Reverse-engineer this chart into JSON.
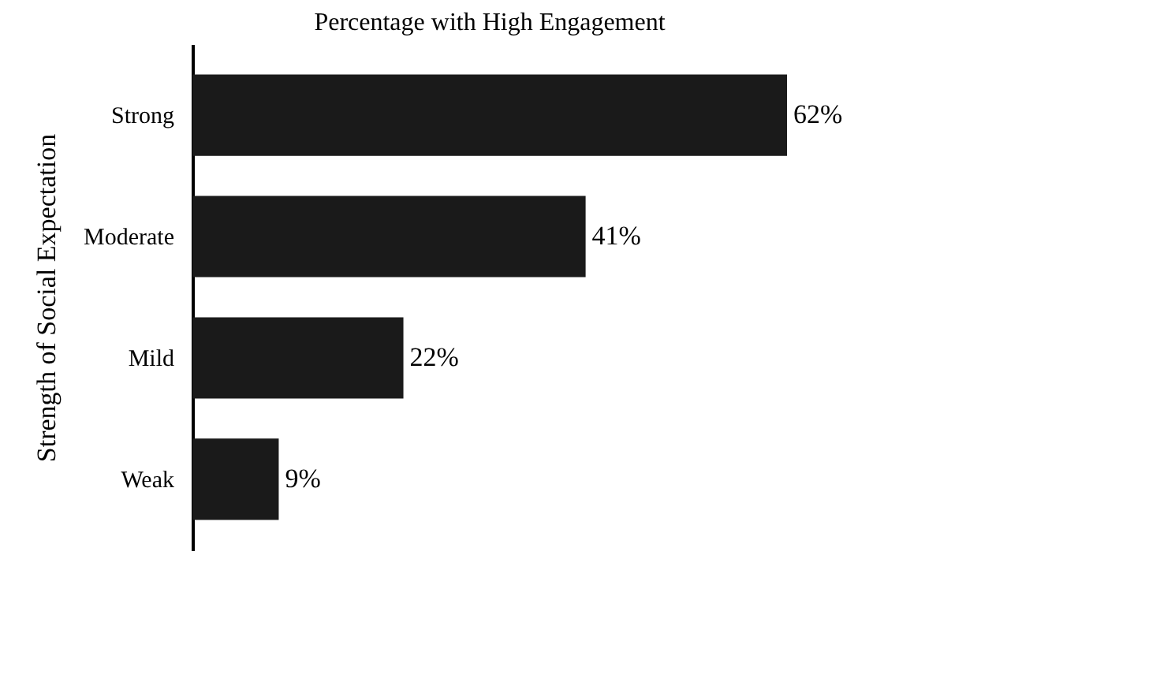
{
  "chart_data": {
    "type": "bar",
    "orientation": "horizontal",
    "title": "Percentage with High Engagement",
    "ylabel": "Strength of Social Expectation",
    "categories": [
      "Strong",
      "Moderate",
      "Mild",
      "Weak"
    ],
    "values": [
      62,
      41,
      22,
      9
    ],
    "value_labels": [
      "62%",
      "41%",
      "22%",
      "9%"
    ],
    "color": "#1a1a1a",
    "tick_labels": "y"
  }
}
